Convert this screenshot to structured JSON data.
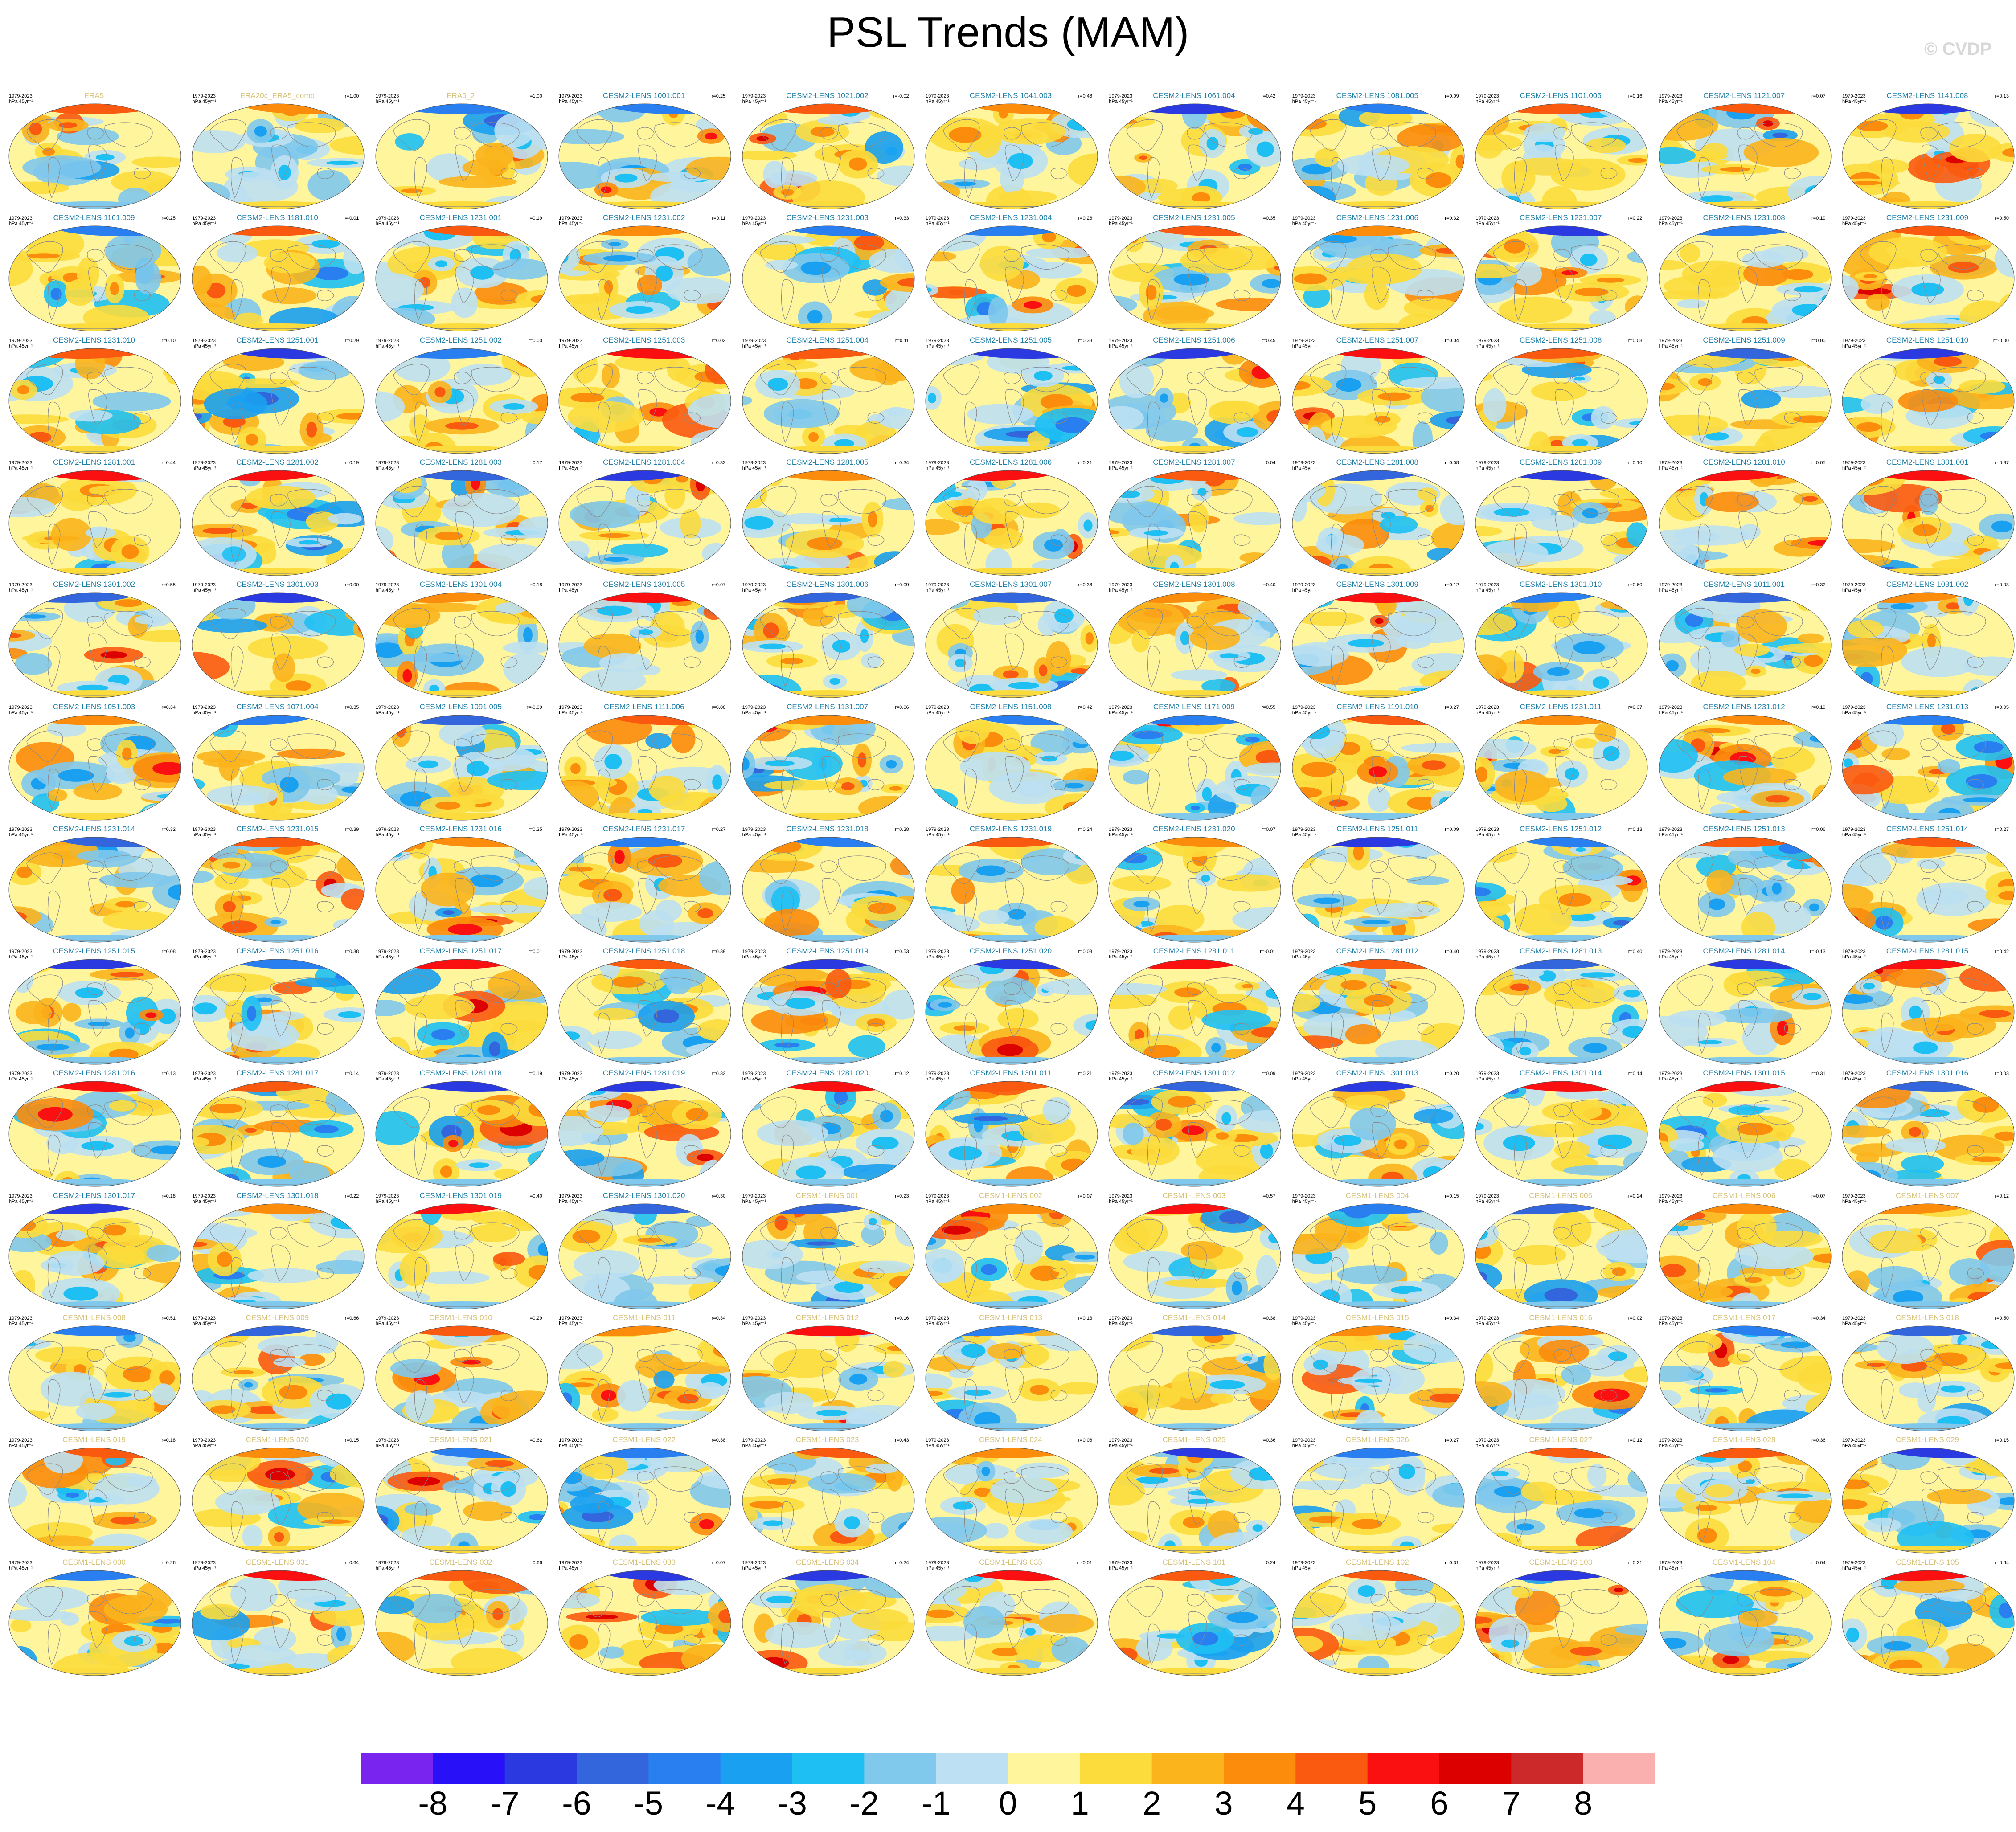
{
  "header": {
    "title": "PSL Trends (MAM)",
    "watermark": "© CVDP"
  },
  "panel_common": {
    "period": "1979-2023",
    "units": "hPa 45yr⁻¹"
  },
  "chart_data": {
    "type": "heatmap",
    "subtype": "panel grid of global PSL trend maps (Mollweide-like)",
    "grid": {
      "rows": 13,
      "cols": 11
    },
    "colorbar": {
      "labels": [
        "-8",
        "-7",
        "-6",
        "-5",
        "-4",
        "-3",
        "-2",
        "-1",
        "0",
        "1",
        "2",
        "3",
        "4",
        "5",
        "6",
        "7",
        "8"
      ],
      "colors": [
        "#7a24f0",
        "#2810f8",
        "#2a3ae0",
        "#3366dd",
        "#2a7ff0",
        "#1aa0f0",
        "#1ec0f4",
        "#80c8ec",
        "#bde0f2",
        "#fff59d",
        "#fcdc3c",
        "#fbb41c",
        "#fb8c0c",
        "#fa5a10",
        "#fa1010",
        "#dc0000",
        "#cc2a2a",
        "#fbb0b0"
      ]
    },
    "panels": [
      {
        "name": "ERA5",
        "r": ""
      },
      {
        "name": "ERA20c_ERA5_comb",
        "r": "r=1.00"
      },
      {
        "name": "ERA5_2",
        "r": "r=1.00"
      },
      {
        "name": "CESM2-LENS 1001.001",
        "r": "r=0.25"
      },
      {
        "name": "CESM2-LENS 1021.002",
        "r": "r=-0.02"
      },
      {
        "name": "CESM2-LENS 1041.003",
        "r": "r=0.46"
      },
      {
        "name": "CESM2-LENS 1061.004",
        "r": "r=0.42"
      },
      {
        "name": "CESM2-LENS 1081.005",
        "r": "r=0.09"
      },
      {
        "name": "CESM2-LENS 1101.006",
        "r": "r=0.16"
      },
      {
        "name": "CESM2-LENS 1121.007",
        "r": "r=0.07"
      },
      {
        "name": "CESM2-LENS 1141.008",
        "r": "r=0.13"
      },
      {
        "name": "CESM2-LENS 1161.009",
        "r": "r=0.25"
      },
      {
        "name": "CESM2-LENS 1181.010",
        "r": "r=-0.01"
      },
      {
        "name": "CESM2-LENS 1231.001",
        "r": "r=0.19"
      },
      {
        "name": "CESM2-LENS 1231.002",
        "r": "r=0.11"
      },
      {
        "name": "CESM2-LENS 1231.003",
        "r": "r=0.33"
      },
      {
        "name": "CESM2-LENS 1231.004",
        "r": "r=0.26"
      },
      {
        "name": "CESM2-LENS 1231.005",
        "r": "r=0.35"
      },
      {
        "name": "CESM2-LENS 1231.006",
        "r": "r=0.32"
      },
      {
        "name": "CESM2-LENS 1231.007",
        "r": "r=0.22"
      },
      {
        "name": "CESM2-LENS 1231.008",
        "r": "r=0.19"
      },
      {
        "name": "CESM2-LENS 1231.009",
        "r": "r=0.50"
      },
      {
        "name": "CESM2-LENS 1231.010",
        "r": "r=0.10"
      },
      {
        "name": "CESM2-LENS 1251.001",
        "r": "r=0.29"
      },
      {
        "name": "CESM2-LENS 1251.002",
        "r": "r=0.00"
      },
      {
        "name": "CESM2-LENS 1251.003",
        "r": "r=0.02"
      },
      {
        "name": "CESM2-LENS 1251.004",
        "r": "r=0.11"
      },
      {
        "name": "CESM2-LENS 1251.005",
        "r": "r=0.38"
      },
      {
        "name": "CESM2-LENS 1251.006",
        "r": "r=0.45"
      },
      {
        "name": "CESM2-LENS 1251.007",
        "r": "r=0.04"
      },
      {
        "name": "CESM2-LENS 1251.008",
        "r": "r=0.08"
      },
      {
        "name": "CESM2-LENS 1251.009",
        "r": "r=0.00"
      },
      {
        "name": "CESM2-LENS 1251.010",
        "r": "r=-0.00"
      },
      {
        "name": "CESM2-LENS 1281.001",
        "r": "r=0.44"
      },
      {
        "name": "CESM2-LENS 1281.002",
        "r": "r=0.19"
      },
      {
        "name": "CESM2-LENS 1281.003",
        "r": "r=0.17"
      },
      {
        "name": "CESM2-LENS 1281.004",
        "r": "r=0.32"
      },
      {
        "name": "CESM2-LENS 1281.005",
        "r": "r=0.34"
      },
      {
        "name": "CESM2-LENS 1281.006",
        "r": "r=0.21"
      },
      {
        "name": "CESM2-LENS 1281.007",
        "r": "r=0.04"
      },
      {
        "name": "CESM2-LENS 1281.008",
        "r": "r=0.08"
      },
      {
        "name": "CESM2-LENS 1281.009",
        "r": "r=0.10"
      },
      {
        "name": "CESM2-LENS 1281.010",
        "r": "r=0.05"
      },
      {
        "name": "CESM2-LENS 1301.001",
        "r": "r=0.37"
      },
      {
        "name": "CESM2-LENS 1301.002",
        "r": "r=0.55"
      },
      {
        "name": "CESM2-LENS 1301.003",
        "r": "r=0.00"
      },
      {
        "name": "CESM2-LENS 1301.004",
        "r": "r=0.18"
      },
      {
        "name": "CESM2-LENS 1301.005",
        "r": "r=0.07"
      },
      {
        "name": "CESM2-LENS 1301.006",
        "r": "r=0.09"
      },
      {
        "name": "CESM2-LENS 1301.007",
        "r": "r=0.36"
      },
      {
        "name": "CESM2-LENS 1301.008",
        "r": "r=0.40"
      },
      {
        "name": "CESM2-LENS 1301.009",
        "r": "r=0.12"
      },
      {
        "name": "CESM2-LENS 1301.010",
        "r": "r=0.60"
      },
      {
        "name": "CESM2-LENS 1011.001",
        "r": "r=0.32"
      },
      {
        "name": "CESM2-LENS 1031.002",
        "r": "r=0.03"
      },
      {
        "name": "CESM2-LENS 1051.003",
        "r": "r=0.34"
      },
      {
        "name": "CESM2-LENS 1071.004",
        "r": "r=0.35"
      },
      {
        "name": "CESM2-LENS 1091.005",
        "r": "r=-0.09"
      },
      {
        "name": "CESM2-LENS 1111.006",
        "r": "r=0.08"
      },
      {
        "name": "CESM2-LENS 1131.007",
        "r": "r=0.06"
      },
      {
        "name": "CESM2-LENS 1151.008",
        "r": "r=0.42"
      },
      {
        "name": "CESM2-LENS 1171.009",
        "r": "r=0.55"
      },
      {
        "name": "CESM2-LENS 1191.010",
        "r": "r=0.27"
      },
      {
        "name": "CESM2-LENS 1231.011",
        "r": "r=0.37"
      },
      {
        "name": "CESM2-LENS 1231.012",
        "r": "r=0.19"
      },
      {
        "name": "CESM2-LENS 1231.013",
        "r": "r=0.05"
      },
      {
        "name": "CESM2-LENS 1231.014",
        "r": "r=0.32"
      },
      {
        "name": "CESM2-LENS 1231.015",
        "r": "r=0.39"
      },
      {
        "name": "CESM2-LENS 1231.016",
        "r": "r=0.25"
      },
      {
        "name": "CESM2-LENS 1231.017",
        "r": "r=0.27"
      },
      {
        "name": "CESM2-LENS 1231.018",
        "r": "r=0.28"
      },
      {
        "name": "CESM2-LENS 1231.019",
        "r": "r=0.24"
      },
      {
        "name": "CESM2-LENS 1231.020",
        "r": "r=0.07"
      },
      {
        "name": "CESM2-LENS 1251.011",
        "r": "r=0.09"
      },
      {
        "name": "CESM2-LENS 1251.012",
        "r": "r=0.13"
      },
      {
        "name": "CESM2-LENS 1251.013",
        "r": "r=0.06"
      },
      {
        "name": "CESM2-LENS 1251.014",
        "r": "r=0.27"
      },
      {
        "name": "CESM2-LENS 1251.015",
        "r": "r=0.08"
      },
      {
        "name": "CESM2-LENS 1251.016",
        "r": "r=0.38"
      },
      {
        "name": "CESM2-LENS 1251.017",
        "r": "r=0.01"
      },
      {
        "name": "CESM2-LENS 1251.018",
        "r": "r=0.39"
      },
      {
        "name": "CESM2-LENS 1251.019",
        "r": "r=0.53"
      },
      {
        "name": "CESM2-LENS 1251.020",
        "r": "r=0.03"
      },
      {
        "name": "CESM2-LENS 1281.011",
        "r": "r=-0.01"
      },
      {
        "name": "CESM2-LENS 1281.012",
        "r": "r=0.40"
      },
      {
        "name": "CESM2-LENS 1281.013",
        "r": "r=0.40"
      },
      {
        "name": "CESM2-LENS 1281.014",
        "r": "r=-0.13"
      },
      {
        "name": "CESM2-LENS 1281.015",
        "r": "r=0.42"
      },
      {
        "name": "CESM2-LENS 1281.016",
        "r": "r=0.13"
      },
      {
        "name": "CESM2-LENS 1281.017",
        "r": "r=0.14"
      },
      {
        "name": "CESM2-LENS 1281.018",
        "r": "r=0.19"
      },
      {
        "name": "CESM2-LENS 1281.019",
        "r": "r=0.32"
      },
      {
        "name": "CESM2-LENS 1281.020",
        "r": "r=0.12"
      },
      {
        "name": "CESM2-LENS 1301.011",
        "r": "r=0.21"
      },
      {
        "name": "CESM2-LENS 1301.012",
        "r": "r=0.09"
      },
      {
        "name": "CESM2-LENS 1301.013",
        "r": "r=0.20"
      },
      {
        "name": "CESM2-LENS 1301.014",
        "r": "r=0.14"
      },
      {
        "name": "CESM2-LENS 1301.015",
        "r": "r=0.31"
      },
      {
        "name": "CESM2-LENS 1301.016",
        "r": "r=0.03"
      },
      {
        "name": "CESM2-LENS 1301.017",
        "r": "r=0.18"
      },
      {
        "name": "CESM2-LENS 1301.018",
        "r": "r=0.22"
      },
      {
        "name": "CESM2-LENS 1301.019",
        "r": "r=0.40"
      },
      {
        "name": "CESM2-LENS 1301.020",
        "r": "r=0.30"
      },
      {
        "name": "CESM1-LENS 001",
        "r": "r=0.23"
      },
      {
        "name": "CESM1-LENS 002",
        "r": "r=0.07"
      },
      {
        "name": "CESM1-LENS 003",
        "r": "r=0.57"
      },
      {
        "name": "CESM1-LENS 004",
        "r": "r=0.15"
      },
      {
        "name": "CESM1-LENS 005",
        "r": "r=0.24"
      },
      {
        "name": "CESM1-LENS 006",
        "r": "r=0.07"
      },
      {
        "name": "CESM1-LENS 007",
        "r": "r=0.12"
      },
      {
        "name": "CESM1-LENS 008",
        "r": "r=0.51"
      },
      {
        "name": "CESM1-LENS 009",
        "r": "r=0.66"
      },
      {
        "name": "CESM1-LENS 010",
        "r": "r=0.29"
      },
      {
        "name": "CESM1-LENS 011",
        "r": "r=0.34"
      },
      {
        "name": "CESM1-LENS 012",
        "r": "r=0.16"
      },
      {
        "name": "CESM1-LENS 013",
        "r": "r=0.13"
      },
      {
        "name": "CESM1-LENS 014",
        "r": "r=0.38"
      },
      {
        "name": "CESM1-LENS 015",
        "r": "r=0.34"
      },
      {
        "name": "CESM1-LENS 016",
        "r": "r=0.02"
      },
      {
        "name": "CESM1-LENS 017",
        "r": "r=0.34"
      },
      {
        "name": "CESM1-LENS 018",
        "r": "r=0.50"
      },
      {
        "name": "CESM1-LENS 019",
        "r": "r=0.18"
      },
      {
        "name": "CESM1-LENS 020",
        "r": "r=0.15"
      },
      {
        "name": "CESM1-LENS 021",
        "r": "r=0.62"
      },
      {
        "name": "CESM1-LENS 022",
        "r": "r=0.38"
      },
      {
        "name": "CESM1-LENS 023",
        "r": "r=0.43"
      },
      {
        "name": "CESM1-LENS 024",
        "r": "r=0.06"
      },
      {
        "name": "CESM1-LENS 025",
        "r": "r=0.36"
      },
      {
        "name": "CESM1-LENS 026",
        "r": "r=0.27"
      },
      {
        "name": "CESM1-LENS 027",
        "r": "r=0.12"
      },
      {
        "name": "CESM1-LENS 028",
        "r": "r=0.36"
      },
      {
        "name": "CESM1-LENS 029",
        "r": "r=0.15"
      },
      {
        "name": "CESM1-LENS 030",
        "r": "r=0.26"
      },
      {
        "name": "CESM1-LENS 031",
        "r": "r=0.64"
      },
      {
        "name": "CESM1-LENS 032",
        "r": "r=0.66"
      },
      {
        "name": "CESM1-LENS 033",
        "r": "r=0.07"
      },
      {
        "name": "CESM1-LENS 034",
        "r": "r=0.24"
      },
      {
        "name": "CESM1-LENS 035",
        "r": "r=-0.01"
      },
      {
        "name": "CESM1-LENS 101",
        "r": "r=0.24"
      },
      {
        "name": "CESM1-LENS 102",
        "r": "r=0.31"
      },
      {
        "name": "CESM1-LENS 103",
        "r": "r=0.21"
      },
      {
        "name": "CESM1-LENS 104",
        "r": "r=0.04"
      },
      {
        "name": "CESM1-LENS 105",
        "r": "r=0.64"
      }
    ]
  }
}
